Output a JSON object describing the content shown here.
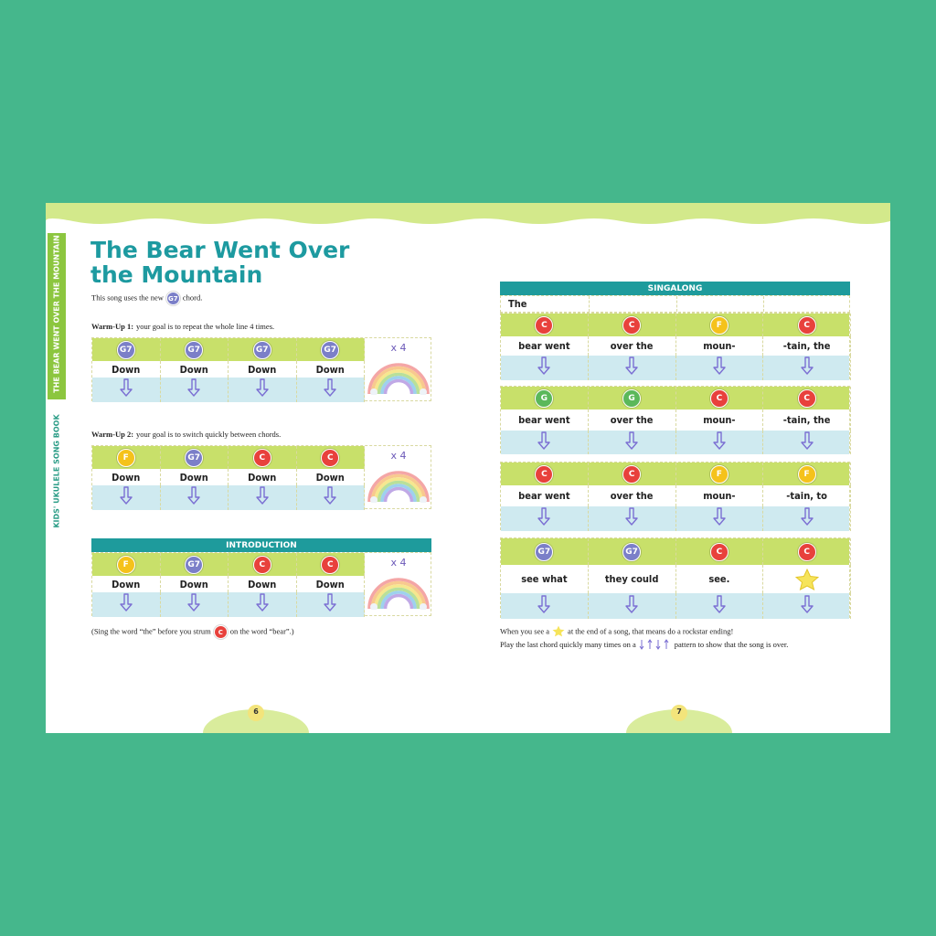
{
  "sidebar": {
    "title": "THE BEAR WENT OVER THE MOUNTAIN",
    "book": "KIDS' UKULELE SONG BOOK"
  },
  "header": {
    "title_line1": "The Bear Went Over",
    "title_line2": "the Mountain",
    "intro": {
      "before": "This song uses the new",
      "chord": "G7",
      "after": "chord."
    }
  },
  "chord_colors": {
    "C": "#e8413c",
    "F": "#f5c21b",
    "G": "#5bb85a",
    "G7": "#7b7fc8"
  },
  "warmups": [
    {
      "label": "Warm-Up 1:",
      "text": "your goal is to repeat the whole line 4 times.",
      "chords": [
        "G7",
        "G7",
        "G7",
        "G7"
      ],
      "strums": [
        "Down",
        "Down",
        "Down",
        "Down"
      ],
      "repeat": "x 4"
    },
    {
      "label": "Warm-Up 2:",
      "text": "your goal is to switch quickly between chords.",
      "chords": [
        "F",
        "G7",
        "C",
        "C"
      ],
      "strums": [
        "Down",
        "Down",
        "Down",
        "Down"
      ],
      "repeat": "x 4"
    }
  ],
  "introduction": {
    "title": "INTRODUCTION",
    "chords": [
      "F",
      "G7",
      "C",
      "C"
    ],
    "strums": [
      "Down",
      "Down",
      "Down",
      "Down"
    ],
    "repeat": "x 4"
  },
  "note": {
    "before": "(Sing the word “the” before you strum",
    "chord": "C",
    "after": "on the word “bear”.)"
  },
  "singalong": {
    "title": "SINGALONG",
    "lead": "The",
    "lines": [
      {
        "chords": [
          "C",
          "C",
          "F",
          "C"
        ],
        "lyrics": [
          "bear went",
          "over the",
          "moun-",
          "-tain, the"
        ]
      },
      {
        "chords": [
          "G",
          "G",
          "C",
          "C"
        ],
        "lyrics": [
          "bear went",
          "over the",
          "moun-",
          "-tain, the"
        ]
      },
      {
        "chords": [
          "C",
          "C",
          "F",
          "F"
        ],
        "lyrics": [
          "bear went",
          "over the",
          "moun-",
          "-tain, to"
        ]
      },
      {
        "chords": [
          "G7",
          "G7",
          "C",
          "C"
        ],
        "lyrics": [
          "see what",
          "they could",
          "see."
        ]
      }
    ]
  },
  "footnotes": [
    {
      "before": "When you see a",
      "after": "at the end of a song, that means do a rockstar ending!"
    },
    {
      "before": "Play the last chord quickly many times on a",
      "after": "pattern to show that the song is over."
    }
  ],
  "pages": [
    "6",
    "7"
  ]
}
